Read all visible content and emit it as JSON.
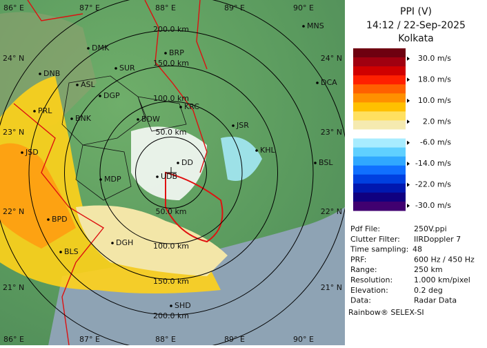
{
  "map": {
    "lon_labels": [
      "86° E",
      "87° E",
      "88° E",
      "89° E",
      "90° E"
    ],
    "lat_labels": [
      "24° N",
      "23° N",
      "22° N",
      "21° N"
    ],
    "range_labels_north": [
      "200.0 km",
      "150.0 km",
      "100.0 km",
      "50.0 km"
    ],
    "range_labels_south": [
      "50.0 km",
      "100.0 km",
      "150.0 km",
      "200.0 km"
    ],
    "cities": [
      "MNS",
      "DMK",
      "BRP",
      "DNB",
      "SUR",
      "ASL",
      "DGP",
      "DCA",
      "KRC",
      "PRL",
      "BNK",
      "BDW",
      "JSR",
      "KHL",
      "JSD",
      "DD",
      "BSL",
      "MDP",
      "UDB",
      "BPD",
      "DGH",
      "BLS",
      "SHD"
    ]
  },
  "panel": {
    "title": "PPI (V)",
    "time": "14:12 / 22-Sep-2025",
    "place": "Kolkata",
    "legend": {
      "colors": [
        "#6e0010",
        "#a00010",
        "#d00000",
        "#ff2000",
        "#ff6000",
        "#ff9000",
        "#ffc000",
        "#ffe060",
        "#f5eab0",
        "#ffffff",
        "#a8ecff",
        "#60d0ff",
        "#30a8ff",
        "#1070ff",
        "#0040e0",
        "#0018b0",
        "#100080",
        "#400070"
      ],
      "labels": [
        "30.0 m/s",
        "18.0 m/s",
        "10.0 m/s",
        "2.0 m/s",
        "-6.0 m/s",
        "-14.0 m/s",
        "-22.0 m/s",
        "-30.0 m/s"
      ]
    },
    "info": [
      [
        "Pdf File:",
        "250V.ppi"
      ],
      [
        "Clutter Filter:",
        "IIRDoppler 7"
      ],
      [
        "Time sampling:",
        "48"
      ],
      [
        "PRF:",
        "600 Hz / 450 Hz"
      ],
      [
        "Range:",
        "250 km"
      ],
      [
        "Resolution:",
        "1.000 km/pixel"
      ],
      [
        "Elevation:",
        "0.2 deg"
      ],
      [
        "Data:",
        "Radar Data"
      ]
    ],
    "footer": "Rainbow® SELEX-SI"
  }
}
